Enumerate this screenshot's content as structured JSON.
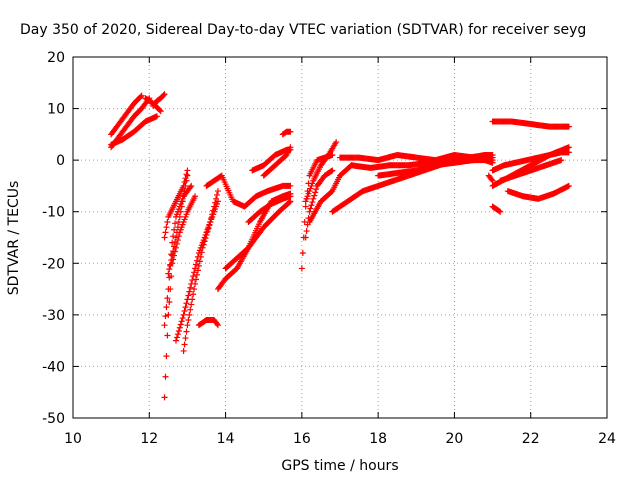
{
  "chart_data": {
    "type": "scatter",
    "title": "Day 350 of 2020, Sidereal Day-to-day VTEC variation (SDTVAR) for receiver seyg",
    "xlabel": "GPS time / hours",
    "ylabel": "SDTVAR / TECUs",
    "xlim": [
      10,
      24
    ],
    "ylim": [
      -50,
      20
    ],
    "xticks": [
      "10",
      "12",
      "14",
      "16",
      "18",
      "20",
      "22",
      "24"
    ],
    "yticks": [
      "-50",
      "-40",
      "-30",
      "-20",
      "-10",
      "0",
      "10",
      "20"
    ],
    "grid": true,
    "marker": "plus",
    "color": "#ff0000",
    "series": [
      {
        "x": [
          11.0,
          11.2,
          11.4,
          11.6,
          11.8
        ],
        "y": [
          5.0,
          7.0,
          9.0,
          11.0,
          12.5
        ]
      },
      {
        "x": [
          11.0,
          11.3,
          11.6,
          11.9,
          12.2
        ],
        "y": [
          3.0,
          4.0,
          5.5,
          7.5,
          8.5
        ]
      },
      {
        "x": [
          11.0,
          11.2,
          11.4,
          11.6,
          11.8,
          12.0
        ],
        "y": [
          2.5,
          4.5,
          6.5,
          8.5,
          10.0,
          12.0
        ]
      },
      {
        "x": [
          11.9,
          12.1,
          12.3
        ],
        "y": [
          12.0,
          11.0,
          9.5
        ]
      },
      {
        "x": [
          12.1,
          12.2,
          12.3,
          12.4
        ],
        "y": [
          10.5,
          11.5,
          12.0,
          12.8
        ]
      },
      {
        "x": [
          12.4,
          12.45,
          12.5,
          12.55,
          12.6,
          12.8,
          13.0,
          13.2
        ],
        "y": [
          -46.0,
          -38.0,
          -30.0,
          -25.0,
          -20.0,
          -14.0,
          -10.0,
          -7.0
        ]
      },
      {
        "x": [
          12.4,
          12.5,
          12.6,
          12.7,
          12.9,
          13.1
        ],
        "y": [
          -32.0,
          -25.0,
          -16.0,
          -11.0,
          -7.0,
          -5.0
        ]
      },
      {
        "x": [
          12.4,
          12.5,
          12.7,
          12.9,
          13.0
        ],
        "y": [
          -15.0,
          -11.0,
          -8.0,
          -5.0,
          -2.0
        ]
      },
      {
        "x": [
          12.5,
          12.7,
          12.9,
          13.0
        ],
        "y": [
          -22.0,
          -15.0,
          -7.0,
          -3.0
        ]
      },
      {
        "x": [
          12.7,
          12.9,
          13.1,
          13.3,
          13.6,
          13.8
        ],
        "y": [
          -35.0,
          -30.0,
          -24.0,
          -18.0,
          -12.0,
          -8.0
        ]
      },
      {
        "x": [
          12.9,
          13.0,
          13.2,
          13.4,
          13.6,
          13.8
        ],
        "y": [
          -37.0,
          -32.0,
          -24.0,
          -17.0,
          -12.0,
          -6.0
        ]
      },
      {
        "x": [
          13.3,
          13.5,
          13.7,
          13.8
        ],
        "y": [
          -32.0,
          -31.0,
          -31.0,
          -32.0
        ]
      },
      {
        "x": [
          13.5,
          13.7,
          13.9,
          14.2,
          14.5,
          14.8,
          15.1,
          15.5,
          15.7
        ],
        "y": [
          -5.0,
          -4.0,
          -3.0,
          -8.0,
          -9.0,
          -7.0,
          -6.0,
          -5.0,
          -5.0
        ]
      },
      {
        "x": [
          13.8,
          14.0,
          14.3,
          14.6,
          14.9,
          15.2,
          15.5,
          15.7
        ],
        "y": [
          -25.0,
          -23.0,
          -21.0,
          -17.0,
          -12.0,
          -8.0,
          -7.0,
          -6.5
        ]
      },
      {
        "x": [
          14.0,
          14.3,
          14.6,
          15.0,
          15.4,
          15.7
        ],
        "y": [
          -21.0,
          -19.0,
          -17.0,
          -13.0,
          -10.0,
          -8.0
        ]
      },
      {
        "x": [
          14.6,
          14.9,
          15.2,
          15.5,
          15.7
        ],
        "y": [
          -12.0,
          -10.0,
          -8.5,
          -7.5,
          -7.0
        ]
      },
      {
        "x": [
          14.7,
          15.0,
          15.3,
          15.6,
          15.7
        ],
        "y": [
          -2.0,
          -1.0,
          1.0,
          2.0,
          2.0
        ]
      },
      {
        "x": [
          15.0,
          15.3,
          15.6,
          15.7
        ],
        "y": [
          -3.0,
          -1.0,
          1.0,
          2.5
        ]
      },
      {
        "x": [
          15.5,
          15.6,
          15.7
        ],
        "y": [
          5.0,
          5.5,
          5.5
        ]
      },
      {
        "x": [
          16.0,
          16.05,
          16.1,
          16.2,
          16.4,
          16.6,
          16.8
        ],
        "y": [
          -21.0,
          -15.0,
          -9.0,
          -3.0,
          0.0,
          0.5,
          1.0
        ]
      },
      {
        "x": [
          16.1,
          16.2,
          16.4,
          16.6,
          16.8
        ],
        "y": [
          -15.0,
          -10.0,
          -5.0,
          -3.0,
          -2.0
        ]
      },
      {
        "x": [
          16.1,
          16.3,
          16.5,
          16.7,
          16.9
        ],
        "y": [
          -8.0,
          -4.0,
          -1.0,
          1.0,
          3.5
        ]
      },
      {
        "x": [
          16.2,
          16.5,
          16.8,
          17.0,
          17.3
        ],
        "y": [
          -12.0,
          -8.0,
          -6.0,
          -3.0,
          -1.0
        ]
      },
      {
        "x": [
          16.8,
          17.2,
          17.6,
          18.0,
          18.4,
          18.8,
          19.2,
          19.6,
          20.0,
          20.4,
          20.8,
          21.0
        ],
        "y": [
          -10.0,
          -8.0,
          -6.0,
          -5.0,
          -4.0,
          -3.0,
          -2.0,
          -1.0,
          0.0,
          0.5,
          1.0,
          1.0
        ]
      },
      {
        "x": [
          17.0,
          17.5,
          18.0,
          18.5,
          19.0,
          19.5,
          20.0,
          20.5,
          21.0
        ],
        "y": [
          0.5,
          0.5,
          0.0,
          1.0,
          0.5,
          0.0,
          1.0,
          0.5,
          0.0
        ]
      },
      {
        "x": [
          17.3,
          17.8,
          18.3,
          18.8,
          19.3,
          19.8,
          20.3,
          20.8,
          21.0
        ],
        "y": [
          -1.0,
          -1.5,
          -1.0,
          -1.0,
          -0.5,
          -0.5,
          0.0,
          0.0,
          -0.5
        ]
      },
      {
        "x": [
          18.0,
          18.5,
          19.0,
          19.5,
          20.0,
          20.5,
          21.0
        ],
        "y": [
          -3.0,
          -2.5,
          -2.0,
          -1.0,
          -0.5,
          0.0,
          0.5
        ]
      },
      {
        "x": [
          21.0,
          21.5,
          22.0,
          22.5,
          23.0
        ],
        "y": [
          7.5,
          7.5,
          7.0,
          6.5,
          6.5
        ]
      },
      {
        "x": [
          21.0,
          21.5,
          22.0,
          22.5,
          23.0
        ],
        "y": [
          -5.0,
          -3.0,
          -1.0,
          1.0,
          2.5
        ]
      },
      {
        "x": [
          21.2,
          21.6,
          22.0,
          22.4,
          22.8
        ],
        "y": [
          -4.0,
          -3.0,
          -2.0,
          -1.0,
          0.0
        ]
      },
      {
        "x": [
          21.4,
          21.8,
          22.2,
          22.6,
          23.0
        ],
        "y": [
          -6.0,
          -7.0,
          -7.5,
          -6.5,
          -5.0
        ]
      },
      {
        "x": [
          21.0,
          21.3,
          21.6,
          21.9,
          22.2,
          22.5,
          22.8,
          23.0
        ],
        "y": [
          -2.0,
          -1.0,
          -0.5,
          0.0,
          0.5,
          1.0,
          1.5,
          1.5
        ]
      },
      {
        "x": [
          21.0,
          21.1,
          21.2
        ],
        "y": [
          -9.0,
          -9.5,
          -10.0
        ]
      },
      {
        "x": [
          20.9,
          21.0
        ],
        "y": [
          -3.0,
          -4.0
        ]
      }
    ]
  }
}
